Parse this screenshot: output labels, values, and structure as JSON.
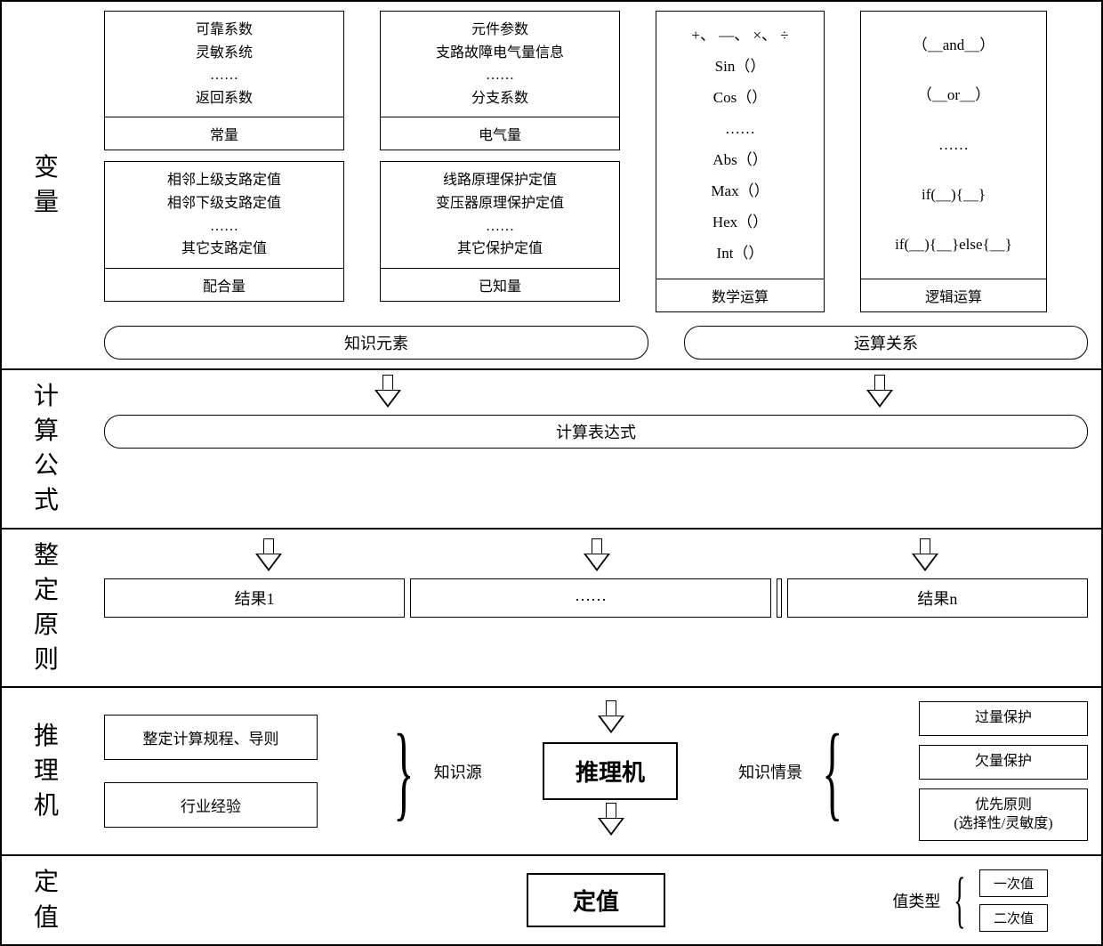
{
  "colors": {
    "border": "#000000",
    "background": "#ffffff",
    "text": "#000000"
  },
  "typography": {
    "base_font": "SimSun",
    "label_size_pt": 20,
    "body_size_pt": 12
  },
  "sections": {
    "variables": {
      "label": "变量",
      "boxes": {
        "constants": {
          "items": [
            "可靠系数",
            "灵敏系统",
            "……",
            "返回系数"
          ],
          "label": "常量"
        },
        "electrical": {
          "items": [
            "元件参数",
            "支路故障电气量信息",
            "……",
            "分支系数"
          ],
          "label": "电气量"
        },
        "coordination": {
          "items": [
            "相邻上级支路定值",
            "相邻下级支路定值",
            "……",
            "其它支路定值"
          ],
          "label": "配合量"
        },
        "known": {
          "items": [
            "线路原理保护定值",
            "变压器原理保护定值",
            "……",
            "其它保护定值"
          ],
          "label": "已知量"
        },
        "math": {
          "items": [
            "+、 —、 ×、 ÷",
            "Sin（）",
            "Cos（）",
            "……",
            "Abs（）",
            "Max（）",
            "Hex（）",
            "Int（）"
          ],
          "label": "数学运算"
        },
        "logic": {
          "items": [
            "（＿and＿）",
            "（＿or＿）",
            "……",
            "if(＿){＿}",
            "if(＿){＿}else{＿}"
          ],
          "label": "逻辑运算"
        }
      },
      "pills": {
        "knowledge_elements": "知识元素",
        "operation_relations": "运算关系"
      }
    },
    "formula": {
      "label": "计算公式",
      "pill": "计算表达式"
    },
    "principles": {
      "label": "整定原则",
      "result1": "结果1",
      "result_mid": "……",
      "resultn": "结果n"
    },
    "inference": {
      "label": "推理机",
      "left": {
        "box1": "整定计算规程、导则",
        "box2": "行业经验",
        "bracket_label": "知识源"
      },
      "center": "推理机",
      "right": {
        "bracket_label": "知识情景",
        "box1": "过量保护",
        "box2": "欠量保护",
        "box3_line1": "优先原则",
        "box3_line2": "(选择性/灵敏度)"
      }
    },
    "value": {
      "label": "定值",
      "center": "定值",
      "type_label": "值类型",
      "types": {
        "primary": "一次值",
        "secondary": "二次值"
      }
    }
  }
}
